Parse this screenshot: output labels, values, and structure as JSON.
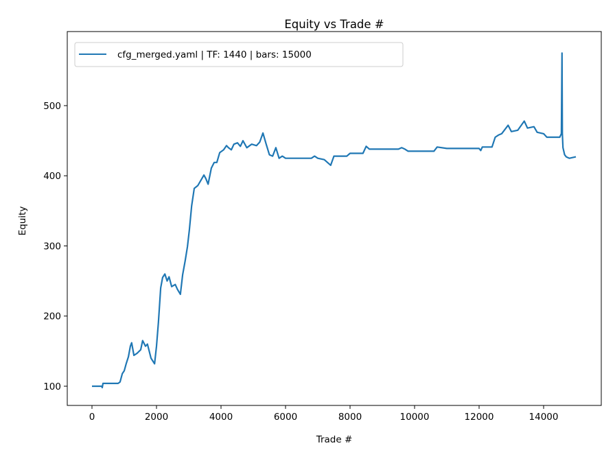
{
  "chart_data": {
    "type": "line",
    "title": "Equity vs Trade #",
    "xlabel": "Trade #",
    "ylabel": "Equity",
    "xlim": [
      -766,
      15787
    ],
    "ylim": [
      72.6,
      605.6
    ],
    "xticks": [
      0,
      2000,
      4000,
      6000,
      8000,
      10000,
      12000,
      14000
    ],
    "xtick_labels": [
      "0",
      "2000",
      "4000",
      "6000",
      "8000",
      "10000",
      "12000",
      "14000"
    ],
    "yticks": [
      100,
      200,
      300,
      400,
      500
    ],
    "ytick_labels": [
      "100",
      "200",
      "300",
      "400",
      "500"
    ],
    "grid": false,
    "legend_position": "top-left",
    "series": [
      {
        "name": "cfg_merged.yaml | TF: 1440 | bars: 15000",
        "color": "#1f77b4",
        "x": [
          0,
          300,
          320,
          340,
          810,
          870,
          940,
          1000,
          1060,
          1130,
          1190,
          1230,
          1300,
          1400,
          1510,
          1570,
          1660,
          1720,
          1830,
          1940,
          2000,
          2060,
          2130,
          2190,
          2260,
          2330,
          2390,
          2470,
          2580,
          2650,
          2740,
          2810,
          2890,
          2960,
          3020,
          3090,
          3170,
          3280,
          3380,
          3470,
          3530,
          3600,
          3700,
          3790,
          3870,
          3960,
          4080,
          4170,
          4230,
          4320,
          4400,
          4510,
          4600,
          4680,
          4800,
          4950,
          5100,
          5200,
          5300,
          5400,
          5500,
          5600,
          5700,
          5800,
          5900,
          6000,
          6800,
          6900,
          7000,
          7200,
          7400,
          7500,
          7900,
          8000,
          8400,
          8500,
          8600,
          9500,
          9600,
          9700,
          9800,
          10600,
          10700,
          11000,
          12000,
          12050,
          12100,
          12400,
          12500,
          12600,
          12700,
          12900,
          13000,
          13200,
          13400,
          13500,
          13700,
          13800,
          14000,
          14100,
          14500,
          14550,
          14570,
          14580,
          14600,
          14650,
          14700,
          14800,
          15000
        ],
        "y": [
          100,
          100,
          98,
          104,
          104,
          106,
          118,
          122,
          132,
          142,
          157,
          162,
          144,
          147,
          152,
          165,
          157,
          160,
          140,
          132,
          157,
          191,
          240,
          255,
          260,
          250,
          256,
          242,
          245,
          238,
          231,
          259,
          279,
          299,
          323,
          357,
          382,
          386,
          394,
          401,
          396,
          388,
          411,
          419,
          419,
          433,
          437,
          443,
          440,
          437,
          445,
          447,
          442,
          450,
          440,
          445,
          443,
          448,
          461,
          445,
          430,
          428,
          440,
          425,
          428,
          425,
          425,
          428,
          425,
          423,
          415,
          428,
          428,
          432,
          432,
          442,
          438,
          438,
          440,
          438,
          435,
          435,
          441,
          439,
          439,
          436,
          441,
          441,
          455,
          458,
          460,
          472,
          463,
          465,
          478,
          468,
          470,
          462,
          460,
          455,
          455,
          460,
          575,
          460,
          440,
          430,
          427,
          425,
          427
        ]
      }
    ]
  }
}
